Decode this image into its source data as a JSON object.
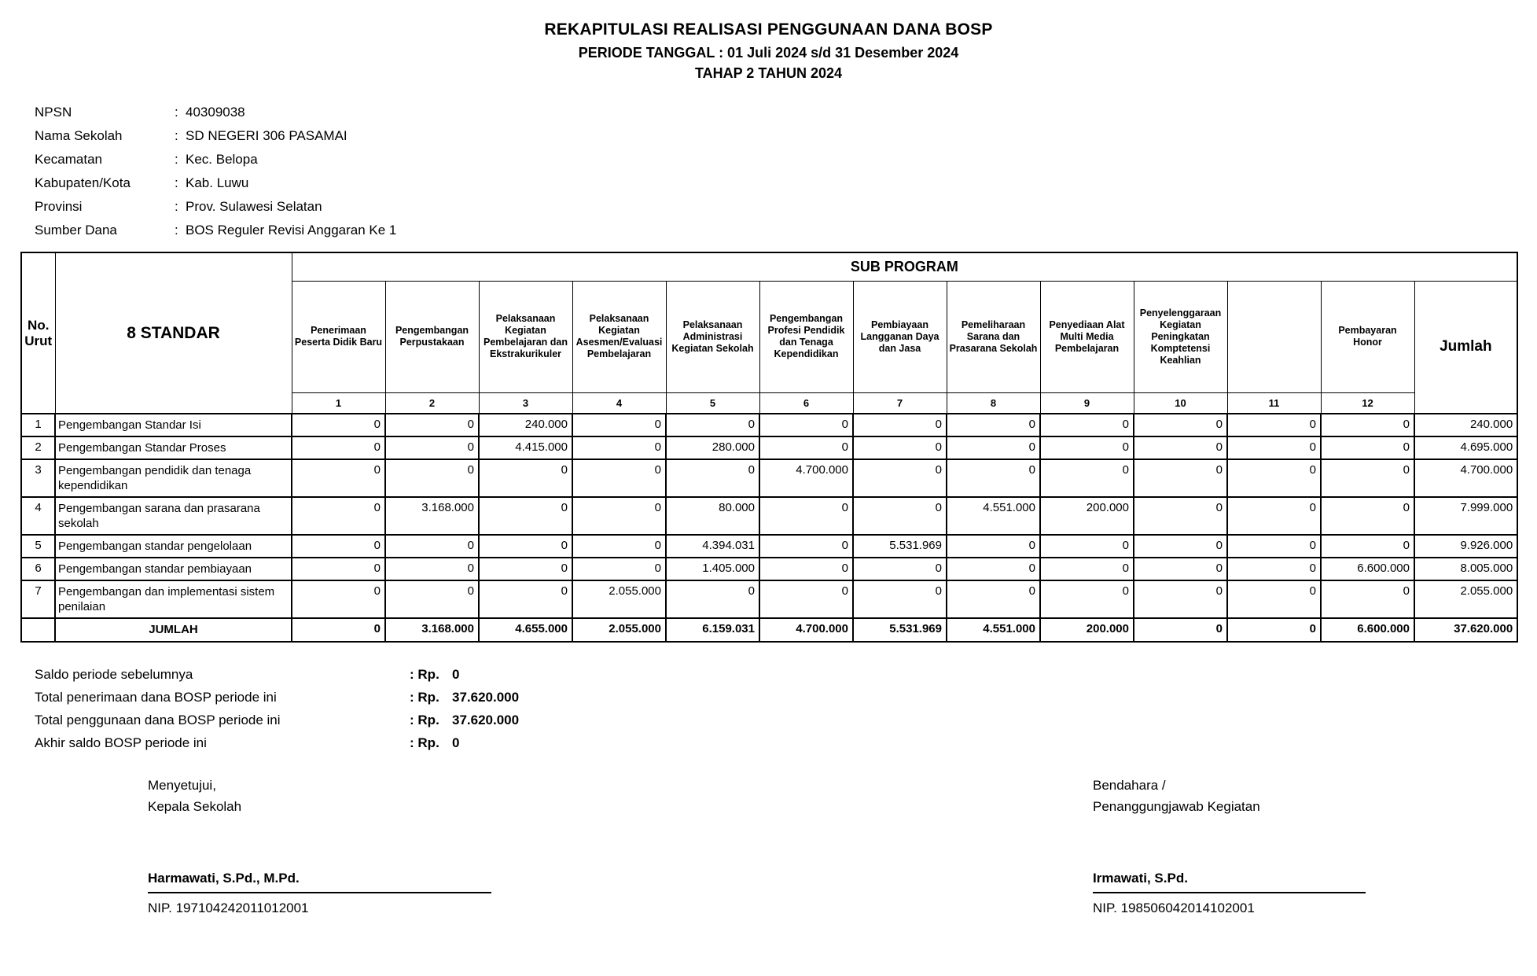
{
  "misc": {
    "colon": ":"
  },
  "header": {
    "title": "REKAPITULASI REALISASI PENGGUNAAN DANA BOSP",
    "subtitle": "PERIODE TANGGAL : 01 Juli 2024 s/d 31 Desember 2024",
    "stage": "TAHAP 2 TAHUN 2024"
  },
  "school_info": {
    "rows": [
      {
        "label": "NPSN",
        "value": "40309038"
      },
      {
        "label": "Nama Sekolah",
        "value": "SD NEGERI 306 PASAMAI"
      },
      {
        "label": "Kecamatan",
        "value": "Kec. Belopa"
      },
      {
        "label": "Kabupaten/Kota",
        "value": "Kab. Luwu"
      },
      {
        "label": "Provinsi",
        "value": "Prov. Sulawesi Selatan"
      },
      {
        "label": "Sumber Dana",
        "value": "BOS Reguler Revisi Anggaran Ke 1"
      }
    ]
  },
  "table": {
    "col_no_header": "No.\nUrut",
    "col_standar_header": "8 STANDAR",
    "subprogram_header": "SUB PROGRAM",
    "jumlah_header": "Jumlah",
    "sub_columns": [
      {
        "no": "1",
        "label": "Penerimaan Peserta Didik Baru"
      },
      {
        "no": "2",
        "label": "Pengembangan Perpustakaan"
      },
      {
        "no": "3",
        "label": "Pelaksanaan Kegiatan Pembelajaran dan Ekstrakurikuler"
      },
      {
        "no": "4",
        "label": "Pelaksanaan Kegiatan Asesmen/Evaluasi Pembelajaran"
      },
      {
        "no": "5",
        "label": "Pelaksanaan Administrasi Kegiatan Sekolah"
      },
      {
        "no": "6",
        "label": "Pengembangan Profesi Pendidik dan Tenaga Kependidikan"
      },
      {
        "no": "7",
        "label": "Pembiayaan Langganan Daya dan Jasa"
      },
      {
        "no": "8",
        "label": "Pemeliharaan Sarana dan Prasarana Sekolah"
      },
      {
        "no": "9",
        "label": "Penyediaan Alat Multi Media Pembelajaran"
      },
      {
        "no": "10",
        "label": "Penyelenggaraan Kegiatan Peningkatan Komptetensi Keahlian"
      },
      {
        "no": "11",
        "label": ""
      },
      {
        "no": "12",
        "label": "Pembayaran Honor"
      }
    ],
    "rows": [
      {
        "no": "1",
        "standar": "Pengembangan Standar Isi",
        "values": [
          "0",
          "0",
          "240.000",
          "0",
          "0",
          "0",
          "0",
          "0",
          "0",
          "0",
          "0",
          "0"
        ],
        "jumlah": "240.000"
      },
      {
        "no": "2",
        "standar": "Pengembangan Standar Proses",
        "values": [
          "0",
          "0",
          "4.415.000",
          "0",
          "280.000",
          "0",
          "0",
          "0",
          "0",
          "0",
          "0",
          "0"
        ],
        "jumlah": "4.695.000"
      },
      {
        "no": "3",
        "standar": "Pengembangan pendidik dan tenaga kependidikan",
        "values": [
          "0",
          "0",
          "0",
          "0",
          "0",
          "4.700.000",
          "0",
          "0",
          "0",
          "0",
          "0",
          "0"
        ],
        "jumlah": "4.700.000"
      },
      {
        "no": "4",
        "standar": "Pengembangan sarana dan prasarana sekolah",
        "values": [
          "0",
          "3.168.000",
          "0",
          "0",
          "80.000",
          "0",
          "0",
          "4.551.000",
          "200.000",
          "0",
          "0",
          "0"
        ],
        "jumlah": "7.999.000"
      },
      {
        "no": "5",
        "standar": "Pengembangan standar pengelolaan",
        "values": [
          "0",
          "0",
          "0",
          "0",
          "4.394.031",
          "0",
          "5.531.969",
          "0",
          "0",
          "0",
          "0",
          "0"
        ],
        "jumlah": "9.926.000"
      },
      {
        "no": "6",
        "standar": "Pengembangan standar pembiayaan",
        "values": [
          "0",
          "0",
          "0",
          "0",
          "1.405.000",
          "0",
          "0",
          "0",
          "0",
          "0",
          "0",
          "6.600.000"
        ],
        "jumlah": "8.005.000"
      },
      {
        "no": "7",
        "standar": "Pengembangan dan implementasi sistem penilaian",
        "values": [
          "0",
          "0",
          "0",
          "2.055.000",
          "0",
          "0",
          "0",
          "0",
          "0",
          "0",
          "0",
          "0"
        ],
        "jumlah": "2.055.000"
      }
    ],
    "total_row": {
      "label": "JUMLAH",
      "values": [
        "0",
        "3.168.000",
        "4.655.000",
        "2.055.000",
        "6.159.031",
        "4.700.000",
        "5.531.969",
        "4.551.000",
        "200.000",
        "0",
        "0",
        "6.600.000"
      ],
      "jumlah": "37.620.000"
    }
  },
  "summary": {
    "rows": [
      {
        "label": "Saldo periode sebelumnya",
        "currency": "Rp.",
        "value": "0"
      },
      {
        "label": "Total penerimaan dana BOSP periode ini",
        "currency": "Rp.",
        "value": "37.620.000"
      },
      {
        "label": "Total penggunaan dana BOSP periode ini",
        "currency": "Rp.",
        "value": "37.620.000"
      },
      {
        "label": "Akhir saldo BOSP periode ini",
        "currency": "Rp.",
        "value": "0"
      }
    ]
  },
  "signatures": {
    "left": {
      "role_line1": "Menyetujui,",
      "role_line2": "Kepala Sekolah",
      "name": "Harmawati, S.Pd., M.Pd.",
      "nip": "NIP. 197104242011012001"
    },
    "right": {
      "role_line1": "Bendahara /",
      "role_line2": "Penanggungjawab Kegiatan",
      "name": "Irmawati, S.Pd.",
      "nip": "NIP. 198506042014102001"
    }
  }
}
